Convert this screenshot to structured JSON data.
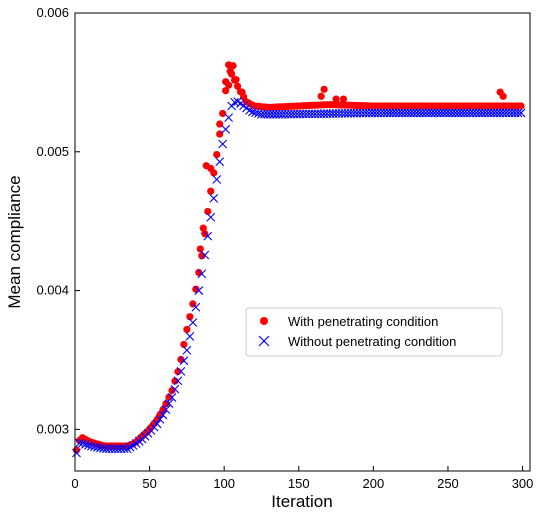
{
  "chart_data": {
    "type": "scatter",
    "xlabel": "Iteration",
    "ylabel": "Mean compliance",
    "xlim": [
      0,
      305
    ],
    "ylim": [
      0.0027,
      0.006
    ],
    "xticks": [
      0,
      50,
      100,
      150,
      200,
      250,
      300
    ],
    "yticks": [
      0.003,
      0.004,
      0.005,
      0.006
    ],
    "ytick_labels": [
      "0.003",
      "0.004",
      "0.005",
      "0.006"
    ],
    "grid": false,
    "legend_position": "center-right",
    "colors": {
      "with": "#ff0000",
      "without": "#0000ff"
    },
    "series": [
      {
        "name": "With penetrating condition",
        "marker": "circle",
        "keypoints": [
          [
            1,
            0.00285
          ],
          [
            3,
            0.00292
          ],
          [
            5,
            0.00294
          ],
          [
            10,
            0.00291
          ],
          [
            20,
            0.00288
          ],
          [
            30,
            0.00288
          ],
          [
            35,
            0.00288
          ],
          [
            40,
            0.0029
          ],
          [
            45,
            0.00295
          ],
          [
            50,
            0.003
          ],
          [
            55,
            0.00307
          ],
          [
            60,
            0.00316
          ],
          [
            65,
            0.00328
          ],
          [
            70,
            0.00345
          ],
          [
            75,
            0.00372
          ],
          [
            80,
            0.00395
          ],
          [
            85,
            0.00425
          ],
          [
            90,
            0.00465
          ],
          [
            95,
            0.00498
          ],
          [
            100,
            0.00535
          ],
          [
            102,
            0.00566
          ],
          [
            105,
            0.00556
          ],
          [
            110,
            0.00545
          ],
          [
            115,
            0.00536
          ],
          [
            120,
            0.00533
          ],
          [
            130,
            0.00532
          ],
          [
            150,
            0.00533
          ],
          [
            170,
            0.00534
          ],
          [
            200,
            0.00533
          ],
          [
            250,
            0.00533
          ],
          [
            285,
            0.00533
          ],
          [
            300,
            0.00533
          ]
        ],
        "outliers": [
          [
            88,
            0.0049
          ],
          [
            91,
            0.00488
          ],
          [
            97,
            0.0052
          ],
          [
            101,
            0.00544
          ],
          [
            103,
            0.00548
          ],
          [
            104,
            0.00558
          ],
          [
            106,
            0.00562
          ],
          [
            108,
            0.00552
          ],
          [
            112,
            0.00543
          ],
          [
            165,
            0.0054
          ],
          [
            167,
            0.00545
          ],
          [
            175,
            0.00538
          ],
          [
            180,
            0.00538
          ],
          [
            285,
            0.00543
          ],
          [
            287,
            0.0054
          ],
          [
            84,
            0.0043
          ],
          [
            86,
            0.00445
          ]
        ]
      },
      {
        "name": "Without penetrating condition",
        "marker": "x",
        "keypoints": [
          [
            1,
            0.00283
          ],
          [
            3,
            0.0029
          ],
          [
            5,
            0.0029
          ],
          [
            10,
            0.00288
          ],
          [
            20,
            0.00286
          ],
          [
            30,
            0.00286
          ],
          [
            35,
            0.00286
          ],
          [
            40,
            0.00289
          ],
          [
            45,
            0.00293
          ],
          [
            50,
            0.00298
          ],
          [
            55,
            0.00304
          ],
          [
            60,
            0.00312
          ],
          [
            65,
            0.00323
          ],
          [
            70,
            0.00338
          ],
          [
            75,
            0.00357
          ],
          [
            80,
            0.00382
          ],
          [
            85,
            0.00412
          ],
          [
            90,
            0.00446
          ],
          [
            95,
            0.0048
          ],
          [
            100,
            0.00512
          ],
          [
            105,
            0.00533
          ],
          [
            108,
            0.00537
          ],
          [
            112,
            0.00534
          ],
          [
            118,
            0.00529
          ],
          [
            125,
            0.00527
          ],
          [
            140,
            0.00527
          ],
          [
            200,
            0.00528
          ],
          [
            250,
            0.00528
          ],
          [
            300,
            0.00528
          ]
        ]
      }
    ]
  }
}
